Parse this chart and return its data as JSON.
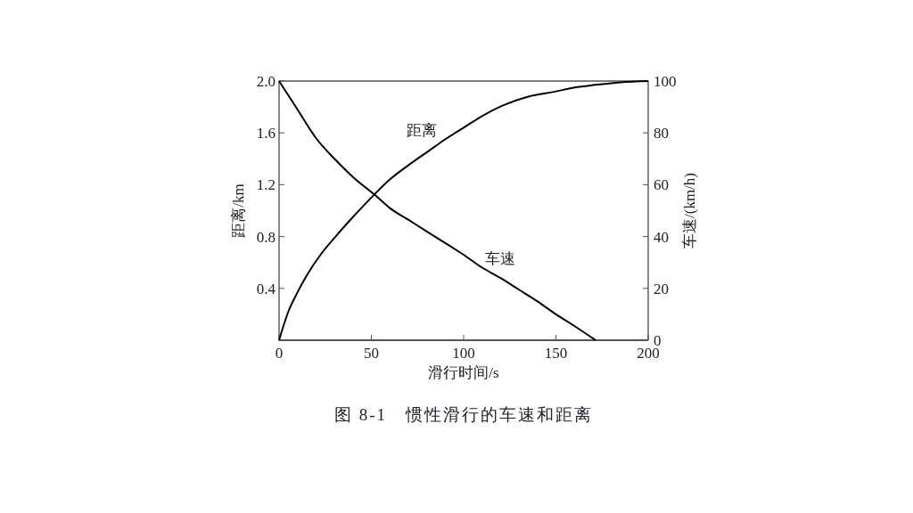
{
  "chart_data": {
    "type": "line",
    "title": "图 8-1　惯性滑行的车速和距离",
    "xlabel": "滑行时间/s",
    "ylabel": "距离/km",
    "y2label": "车速/(km/h)",
    "xlim": [
      0,
      200
    ],
    "xticks": [
      0,
      50,
      100,
      150,
      200
    ],
    "ylim": [
      0,
      2.0
    ],
    "yticks": [
      {
        "value": 0,
        "label": null
      },
      0.4,
      0.8,
      1.2,
      1.6,
      {
        "value": 2.0,
        "label": "2.0"
      }
    ],
    "y2lim": [
      0,
      100
    ],
    "y2ticks": [
      0,
      20,
      40,
      60,
      80,
      100
    ],
    "grid": false,
    "marker": "none",
    "line_style": "solid",
    "series": [
      {
        "name": "距离",
        "color": "#000000",
        "x": [
          0,
          5,
          10,
          15,
          23,
          30,
          40,
          52,
          60,
          70,
          81,
          90,
          100,
          110,
          121,
          135,
          150,
          160,
          171,
          185,
          200
        ],
        "values": [
          0,
          0.22,
          0.37,
          0.5,
          0.67,
          0.79,
          0.95,
          1.13,
          1.24,
          1.35,
          1.46,
          1.55,
          1.64,
          1.73,
          1.81,
          1.88,
          1.92,
          1.95,
          1.97,
          1.99,
          2.0
        ]
      },
      {
        "name": "车速",
        "color": "#000000",
        "axis": "y2",
        "x": [
          0,
          10,
          20,
          30,
          40,
          52,
          60,
          70,
          80,
          90,
          100,
          110,
          120,
          130,
          140,
          150,
          160,
          171.5
        ],
        "values": [
          100,
          89,
          78,
          70,
          63,
          56,
          51,
          46.5,
          42,
          37.5,
          33,
          28,
          24,
          19.5,
          15,
          10,
          5.5,
          0
        ]
      }
    ]
  }
}
